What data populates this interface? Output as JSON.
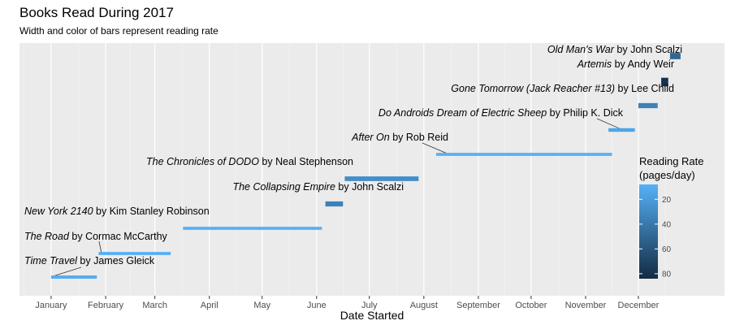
{
  "chart_data": {
    "type": "bar",
    "subtype": "timeline-segments",
    "title": "Books Read During 2017",
    "subtitle": "Width and color of bars represent reading rate",
    "xlabel": "Date Started",
    "ylabel": "",
    "x_ticks": [
      "January",
      "February",
      "March",
      "April",
      "May",
      "June",
      "July",
      "August",
      "September",
      "October",
      "November",
      "December"
    ],
    "x_tick_dates": [
      "2017-01-01",
      "2017-02-01",
      "2017-03-01",
      "2017-04-01",
      "2017-05-01",
      "2017-06-01",
      "2017-07-01",
      "2017-08-01",
      "2017-09-01",
      "2017-10-01",
      "2017-11-01",
      "2017-12-01"
    ],
    "xlim": [
      "2016-12-14",
      "2018-01-19"
    ],
    "grid": true,
    "legend": {
      "title": [
        "Reading Rate",
        "(pages/day)"
      ],
      "placement": "right",
      "ticks": [
        20,
        40,
        60,
        80
      ],
      "range": [
        8,
        84
      ],
      "color_low": "#56B1F7",
      "color_high": "#132B43"
    },
    "books": [
      {
        "title": "Time Travel",
        "author": "James Gleick",
        "start": "2017-01-01",
        "end": "2017-01-27",
        "rate": 10
      },
      {
        "title": "The Road",
        "author": "Cormac McCarthy",
        "start": "2017-01-28",
        "end": "2017-03-10",
        "rate": 9
      },
      {
        "title": "New York 2140",
        "author": "Kim Stanley Robinson",
        "start": "2017-03-17",
        "end": "2017-06-04",
        "rate": 8
      },
      {
        "title": "The Collapsing Empire",
        "author": "John Scalzi",
        "start": "2017-06-06",
        "end": "2017-06-16",
        "rate": 35
      },
      {
        "title": "The Chronicles of DODO",
        "author": "Neal Stephenson",
        "start": "2017-06-17",
        "end": "2017-07-29",
        "rate": 28
      },
      {
        "title": "After On",
        "author": "Rob Reid",
        "start": "2017-08-08",
        "end": "2017-11-16",
        "rate": 8
      },
      {
        "title": "Do Androids Dream of Electric Sheep",
        "author": "Philip K. Dick",
        "start": "2017-11-14",
        "end": "2017-11-29",
        "rate": 15
      },
      {
        "title": "Gone Tomorrow (Jack Reacher #13)",
        "author": "Lee Child",
        "start": "2017-12-01",
        "end": "2017-12-12",
        "rate": 35
      },
      {
        "title": "Artemis",
        "author": "Andy Weir",
        "start": "2017-12-14",
        "end": "2017-12-18",
        "rate": 80
      },
      {
        "title": "Old Man's War",
        "author": "John Scalzi",
        "start": "2017-12-19",
        "end": "2017-12-25",
        "rate": 50
      }
    ]
  }
}
